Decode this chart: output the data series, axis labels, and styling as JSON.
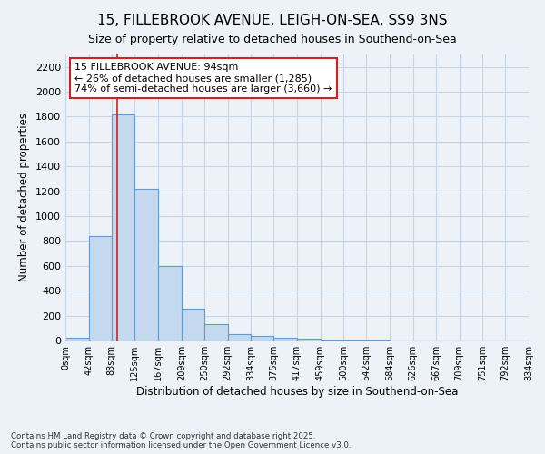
{
  "title_line1": "15, FILLEBROOK AVENUE, LEIGH-ON-SEA, SS9 3NS",
  "title_line2": "Size of property relative to detached houses in Southend-on-Sea",
  "xlabel": "Distribution of detached houses by size in Southend-on-Sea",
  "ylabel": "Number of detached properties",
  "bin_edges": [
    0,
    42,
    83,
    125,
    167,
    209,
    250,
    292,
    334,
    375,
    417,
    459,
    500,
    542,
    584,
    626,
    667,
    709,
    751,
    792,
    834
  ],
  "bar_heights": [
    25,
    840,
    1820,
    1220,
    600,
    255,
    130,
    50,
    35,
    25,
    15,
    5,
    5,
    5,
    0,
    0,
    0,
    0,
    0,
    0
  ],
  "bar_color": "#c5d9ee",
  "bar_edge_color": "#6699cc",
  "ylim": [
    0,
    2300
  ],
  "yticks": [
    0,
    200,
    400,
    600,
    800,
    1000,
    1200,
    1400,
    1600,
    1800,
    2000,
    2200
  ],
  "property_size": 94,
  "red_line_color": "#cc2222",
  "annotation_text": "15 FILLEBROOK AVENUE: 94sqm\n← 26% of detached houses are smaller (1,285)\n74% of semi-detached houses are larger (3,660) →",
  "annotation_box_color": "#ffffff",
  "annotation_box_edge_color": "#cc2222",
  "grid_color": "#c8d4e8",
  "background_color": "#edf2f8",
  "footer_text": "Contains HM Land Registry data © Crown copyright and database right 2025.\nContains public sector information licensed under the Open Government Licence v3.0.",
  "tick_labels": [
    "0sqm",
    "42sqm",
    "83sqm",
    "125sqm",
    "167sqm",
    "209sqm",
    "250sqm",
    "292sqm",
    "334sqm",
    "375sqm",
    "417sqm",
    "459sqm",
    "500sqm",
    "542sqm",
    "584sqm",
    "626sqm",
    "667sqm",
    "709sqm",
    "751sqm",
    "792sqm",
    "834sqm"
  ]
}
